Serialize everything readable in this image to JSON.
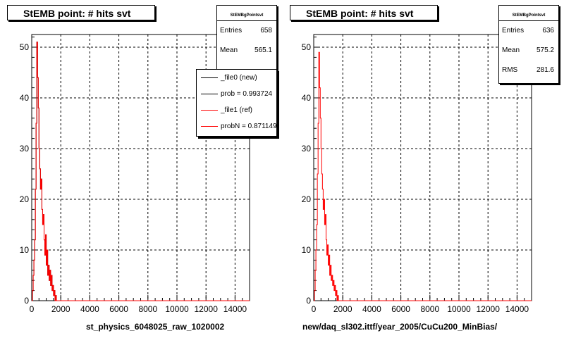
{
  "colors": {
    "ref_line": "#ff0000",
    "new_line": "#000000",
    "grid": "#000000"
  },
  "panels": [
    {
      "title": "StEMB point: # hits svt",
      "stats": {
        "name": "StEMBgPointsvt",
        "rows": [
          {
            "label": "Entries",
            "value": "658"
          },
          {
            "label": "Mean",
            "value": "565.1"
          }
        ]
      },
      "legend": {
        "items": [
          {
            "label": "_file0 (new)",
            "color": "#000000"
          },
          {
            "label": "prob = 0.993724",
            "color": "#000000"
          },
          {
            "label": "_file1 (ref)",
            "color": "#ff0000"
          },
          {
            "label": "probN = 0.871149",
            "color": "#ff0000"
          }
        ]
      },
      "xtitle": "st_physics_6048025_raw_1020002"
    },
    {
      "title": "StEMB point: # hits svt",
      "stats": {
        "name": "StEMBgPointsvt",
        "rows": [
          {
            "label": "Entries",
            "value": "636"
          },
          {
            "label": "Mean",
            "value": "575.2"
          },
          {
            "label": "RMS",
            "value": "281.6"
          }
        ]
      },
      "xtitle": "new/daq_sl302.ittf/year_2005/CuCu200_MinBias/"
    }
  ],
  "chart_data": [
    {
      "type": "line",
      "title": "StEMB point: # hits svt",
      "xlabel": "st_physics_6048025_raw_1020002",
      "ylabel": "",
      "xlim": [
        0,
        15000
      ],
      "ylim": [
        0,
        52.5
      ],
      "xticks": [
        0,
        2000,
        4000,
        6000,
        8000,
        10000,
        12000,
        14000
      ],
      "yticks": [
        0,
        10,
        20,
        30,
        40,
        50
      ],
      "grid": true,
      "legend": "top-right",
      "series": [
        {
          "name": "_file1 (ref)",
          "color": "#ff0000",
          "style": "step",
          "x": [
            0,
            50,
            100,
            150,
            200,
            250,
            300,
            350,
            400,
            450,
            500,
            550,
            600,
            650,
            700,
            750,
            800,
            850,
            900,
            950,
            1000,
            1050,
            1100,
            1150,
            1200,
            1250,
            1300,
            1350,
            1400,
            1450,
            1500,
            1550,
            1600,
            1650,
            1700
          ],
          "y": [
            0,
            2,
            5,
            8,
            12,
            22,
            35,
            51,
            44,
            38,
            30,
            26,
            22,
            24,
            18,
            15,
            17,
            12,
            9,
            13,
            7,
            10,
            5,
            7,
            4,
            6,
            3,
            5,
            2,
            3,
            1,
            2,
            0,
            1,
            0
          ]
        },
        {
          "name": "_file0 (new)",
          "color": "#000000",
          "style": "step",
          "x": [
            0,
            50,
            100,
            150,
            200,
            250,
            300,
            350,
            400,
            450,
            500,
            550,
            600,
            650,
            700,
            750,
            800,
            850,
            900,
            950,
            1000,
            1050,
            1100,
            1150,
            1200,
            1250,
            1300,
            1350,
            1400,
            1450,
            1500,
            1550,
            1600,
            1650,
            1700
          ],
          "y": [
            0,
            2,
            5,
            8,
            12,
            22,
            35,
            51,
            44,
            38,
            30,
            26,
            22,
            24,
            18,
            15,
            17,
            12,
            9,
            13,
            7,
            10,
            5,
            7,
            4,
            6,
            3,
            5,
            2,
            3,
            1,
            2,
            0,
            1,
            0
          ]
        }
      ]
    },
    {
      "type": "line",
      "title": "StEMB point: # hits svt",
      "xlabel": "new/daq_sl302.ittf/year_2005/CuCu200_MinBias/",
      "ylabel": "",
      "xlim": [
        0,
        15000
      ],
      "ylim": [
        0,
        52.5
      ],
      "xticks": [
        0,
        2000,
        4000,
        6000,
        8000,
        10000,
        12000,
        14000
      ],
      "yticks": [
        0,
        10,
        20,
        30,
        40,
        50
      ],
      "grid": true,
      "series": [
        {
          "color": "#ff0000",
          "style": "step",
          "x": [
            0,
            50,
            100,
            150,
            200,
            250,
            300,
            350,
            400,
            450,
            500,
            550,
            600,
            650,
            700,
            750,
            800,
            850,
            900,
            950,
            1000,
            1050,
            1100,
            1150,
            1200,
            1250,
            1300,
            1350,
            1400,
            1450,
            1500,
            1550,
            1600,
            1650,
            1700
          ],
          "y": [
            0,
            2,
            6,
            10,
            15,
            25,
            35,
            49,
            42,
            36,
            30,
            25,
            22,
            18,
            20,
            15,
            17,
            12,
            9,
            11,
            7,
            9,
            5,
            7,
            4,
            5,
            3,
            4,
            2,
            3,
            1,
            2,
            0,
            1,
            0
          ]
        }
      ]
    }
  ]
}
